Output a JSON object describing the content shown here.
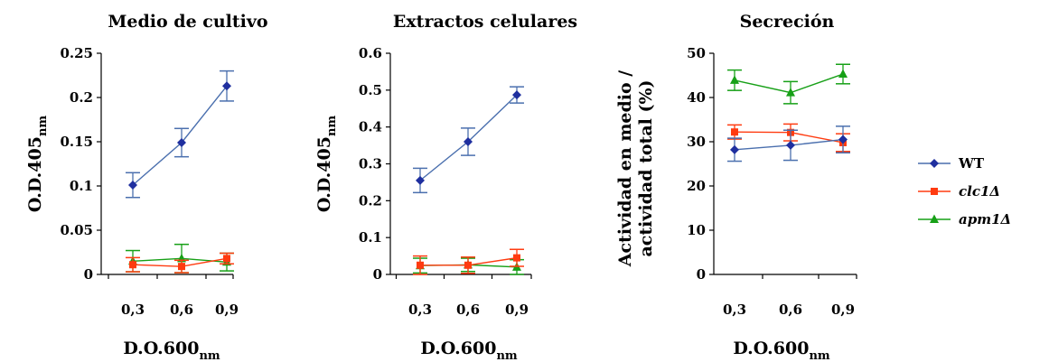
{
  "legend": [
    {
      "label": "WT",
      "italic": false
    },
    {
      "label": "clc1Δ",
      "italic": true
    },
    {
      "label": "apm1Δ",
      "italic": true
    }
  ],
  "series_style": [
    {
      "name": "WT",
      "color": "#1f2f9f",
      "line": "#4a6fae",
      "marker": "diamond"
    },
    {
      "name": "clc1Δ",
      "color": "#ff3b10",
      "line": "#ff3b10",
      "marker": "square"
    },
    {
      "name": "apm1Δ",
      "color": "#17a017",
      "line": "#17a017",
      "marker": "triangle"
    }
  ],
  "chart_data": [
    {
      "type": "line",
      "title": "Medio de cultivo",
      "xlabel": {
        "main": "D.O.600",
        "sub": "nm"
      },
      "ylabel": {
        "main": "O.D.405",
        "sub": "nm"
      },
      "categories": [
        "0,3",
        "0,6",
        "0,9"
      ],
      "ylim": [
        0,
        0.25
      ],
      "yticks": [
        0,
        0.05,
        0.1,
        0.15,
        0.2,
        0.25
      ],
      "yticklabels": [
        "0",
        "0.05",
        "0.1",
        "0.15",
        "0.2",
        "0.25"
      ],
      "series": [
        {
          "name": "WT",
          "values": [
            0.101,
            0.149,
            0.213
          ],
          "errors": [
            0.014,
            0.016,
            0.017
          ]
        },
        {
          "name": "clc1Δ",
          "values": [
            0.011,
            0.009,
            0.018
          ],
          "errors": [
            0.008,
            0.007,
            0.006
          ]
        },
        {
          "name": "apm1Δ",
          "values": [
            0.015,
            0.018,
            0.014
          ],
          "errors": [
            0.012,
            0.016,
            0.01
          ]
        }
      ]
    },
    {
      "type": "line",
      "title": "Extractos celulares",
      "xlabel": {
        "main": "D.O.600",
        "sub": "nm"
      },
      "ylabel": {
        "main": "O.D.405",
        "sub": "nm"
      },
      "categories": [
        "0,3",
        "0,6",
        "0,9"
      ],
      "ylim": [
        0,
        0.6
      ],
      "yticks": [
        0,
        0.1,
        0.2,
        0.3,
        0.4,
        0.5,
        0.6
      ],
      "yticklabels": [
        "0",
        "0.1",
        "0.2",
        "0.3",
        "0.4",
        "0.5",
        "0.6"
      ],
      "series": [
        {
          "name": "WT",
          "values": [
            0.255,
            0.36,
            0.487
          ],
          "errors": [
            0.033,
            0.037,
            0.022
          ]
        },
        {
          "name": "clc1Δ",
          "values": [
            0.025,
            0.025,
            0.045
          ],
          "errors": [
            0.025,
            0.022,
            0.023
          ]
        },
        {
          "name": "apm1Δ",
          "values": [
            0.024,
            0.026,
            0.02
          ],
          "errors": [
            0.02,
            0.018,
            0.02
          ]
        }
      ]
    },
    {
      "type": "line",
      "title": "Secreción",
      "xlabel": {
        "main": "D.O.600",
        "sub": "nm"
      },
      "ylabel": {
        "line1": "Actividad en medio /",
        "line2": "actividad total (%)"
      },
      "categories": [
        "0,3",
        "0,6",
        "0,9"
      ],
      "ylim": [
        0,
        50
      ],
      "yticks": [
        0,
        10,
        20,
        30,
        40,
        50
      ],
      "yticklabels": [
        "0",
        "10",
        "20",
        "30",
        "40",
        "50"
      ],
      "series": [
        {
          "name": "WT",
          "values": [
            28.2,
            29.2,
            30.5
          ],
          "errors": [
            2.6,
            3.4,
            3.0
          ]
        },
        {
          "name": "clc1Δ",
          "values": [
            32.2,
            32.1,
            29.8
          ],
          "errors": [
            1.6,
            1.9,
            2.0
          ]
        },
        {
          "name": "apm1Δ",
          "values": [
            43.9,
            41.1,
            45.3
          ],
          "errors": [
            2.3,
            2.5,
            2.2
          ]
        }
      ]
    }
  ]
}
